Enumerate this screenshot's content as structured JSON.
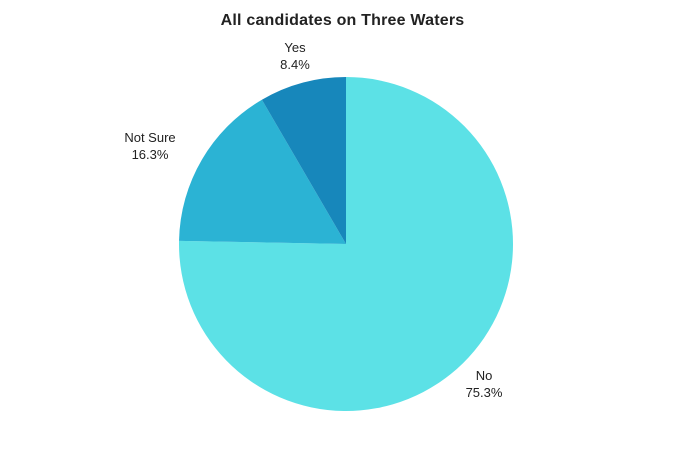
{
  "chart_data": {
    "type": "pie",
    "title": "All candidates on Three Waters",
    "slices": [
      {
        "label": "No",
        "value": 75.3,
        "value_label": "75.3%",
        "color": "#5ce1e6"
      },
      {
        "label": "Not Sure",
        "value": 16.3,
        "value_label": "16.3%",
        "color": "#2bb3d4"
      },
      {
        "label": "Yes",
        "value": 8.4,
        "value_label": "8.4%",
        "color": "#1787bb"
      }
    ],
    "start": "12 o'clock",
    "direction": "clockwise",
    "legend": "none"
  }
}
